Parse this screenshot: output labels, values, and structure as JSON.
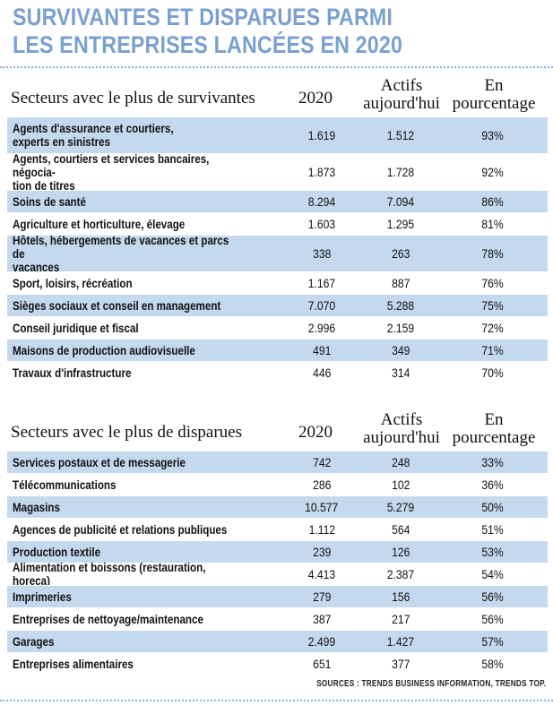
{
  "title": {
    "line1": "SURVIVANTES ET DISPARUES PARMI",
    "line2": "LES ENTREPRISES LANCÉES EN 2020"
  },
  "chart_data": [
    {
      "type": "table",
      "columns": [
        "Secteurs avec le plus de survivantes",
        "2020",
        "Actifs aujourd'hui",
        "En pourcentage"
      ],
      "column_lines": {
        "actifs": [
          "Actifs",
          "aujourd'hui"
        ],
        "pct": [
          "En",
          "pourcentage"
        ]
      },
      "rows": [
        {
          "sector": [
            "Agents d'assurance et courtiers,",
            "experts en sinistres"
          ],
          "y2020": "1.619",
          "actifs": "1.512",
          "pct": "93%"
        },
        {
          "sector": [
            "Agents, courtiers et services bancaires, négocia-",
            "tion de titres"
          ],
          "y2020": "1.873",
          "actifs": "1.728",
          "pct": "92%"
        },
        {
          "sector": [
            "Soins de santé"
          ],
          "y2020": "8.294",
          "actifs": "7.094",
          "pct": "86%"
        },
        {
          "sector": [
            "Agriculture et horticulture, élevage"
          ],
          "y2020": "1.603",
          "actifs": "1.295",
          "pct": "81%"
        },
        {
          "sector": [
            "Hôtels, hébergements de vacances et parcs de",
            "vacances"
          ],
          "y2020": "338",
          "actifs": "263",
          "pct": "78%"
        },
        {
          "sector": [
            "Sport, loisirs, récréation"
          ],
          "y2020": "1.167",
          "actifs": "887",
          "pct": "76%"
        },
        {
          "sector": [
            "Sièges sociaux et conseil en management"
          ],
          "y2020": "7.070",
          "actifs": "5.288",
          "pct": "75%"
        },
        {
          "sector": [
            "Conseil juridique et fiscal"
          ],
          "y2020": "2.996",
          "actifs": "2.159",
          "pct": "72%"
        },
        {
          "sector": [
            "Maisons de production audiovisuelle"
          ],
          "y2020": "491",
          "actifs": "349",
          "pct": "71%"
        },
        {
          "sector": [
            "Travaux d'infrastructure"
          ],
          "y2020": "446",
          "actifs": "314",
          "pct": "70%"
        }
      ]
    },
    {
      "type": "table",
      "columns": [
        "Secteurs avec le plus de disparues",
        "2020",
        "Actifs aujourd'hui",
        "En pourcentage"
      ],
      "column_lines": {
        "actifs": [
          "Actifs",
          "aujourd'hui"
        ],
        "pct": [
          "En",
          "pourcentage"
        ]
      },
      "rows": [
        {
          "sector": [
            "Services postaux et de messagerie"
          ],
          "y2020": "742",
          "actifs": "248",
          "pct": "33%"
        },
        {
          "sector": [
            "Télécommunications"
          ],
          "y2020": "286",
          "actifs": "102",
          "pct": "36%"
        },
        {
          "sector": [
            "Magasins"
          ],
          "y2020": "10.577",
          "actifs": "5.279",
          "pct": "50%"
        },
        {
          "sector": [
            "Agences de publicité et relations publiques"
          ],
          "y2020": "1.112",
          "actifs": "564",
          "pct": "51%"
        },
        {
          "sector": [
            "Production textile"
          ],
          "y2020": "239",
          "actifs": "126",
          "pct": "53%"
        },
        {
          "sector": [
            "Alimentation et boissons (restauration, horeca)"
          ],
          "y2020": "4.413",
          "actifs": "2.387",
          "pct": "54%"
        },
        {
          "sector": [
            "Imprimeries"
          ],
          "y2020": "279",
          "actifs": "156",
          "pct": "56%"
        },
        {
          "sector": [
            "Entreprises de nettoyage/maintenance"
          ],
          "y2020": "387",
          "actifs": "217",
          "pct": "56%"
        },
        {
          "sector": [
            "Garages"
          ],
          "y2020": "2.499",
          "actifs": "1.427",
          "pct": "57%"
        },
        {
          "sector": [
            "Entreprises alimentaires"
          ],
          "y2020": "651",
          "actifs": "377",
          "pct": "58%"
        }
      ]
    }
  ],
  "sources": "SOURCES : TRENDS BUSINESS INFORMATION, TRENDS TOP.",
  "colors": {
    "title": "#7aa0cf",
    "row_shade": "#c4d8ee",
    "divider": "#8fb1d8"
  }
}
